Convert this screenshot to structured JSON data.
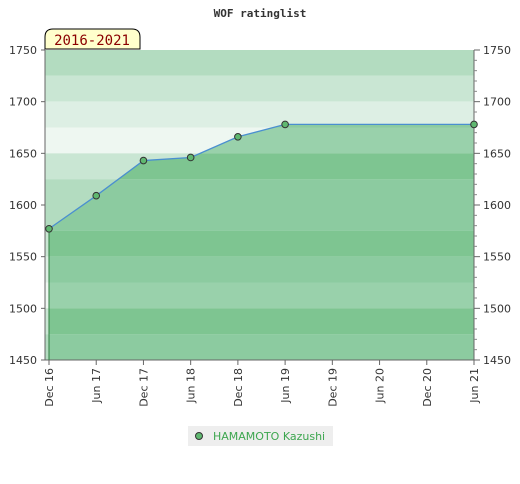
{
  "chart_data": {
    "type": "area",
    "title": "WOF ratinglist",
    "badge": "2016-2021",
    "x_categories": [
      "Dec 16",
      "Jun 17",
      "Dec 17",
      "Jun 18",
      "Dec 18",
      "Jun 19",
      "Dec 19",
      "Jun 20",
      "Dec 20",
      "Jun 21"
    ],
    "ylim": [
      1450,
      1750
    ],
    "y_ticks": [
      1450,
      1500,
      1550,
      1600,
      1650,
      1700,
      1750
    ],
    "y_tick_labels": [
      "1450",
      "1500",
      "1550",
      "1600",
      "1650",
      "1700",
      "1750"
    ],
    "series": [
      {
        "name": "HAMAMOTO Kazushi",
        "x": [
          "Dec 16",
          "Jun 17",
          "Dec 17",
          "Jun 18",
          "Dec 18",
          "Jun 19",
          "Jun 21"
        ],
        "values": [
          1577,
          1609,
          1643,
          1646,
          1666,
          1678,
          1678
        ]
      }
    ],
    "legend_position": "bottom-center",
    "grid": true,
    "colors": {
      "line": "#4a8fd0",
      "marker": "#3da64f",
      "legend_text": "#3da64f",
      "badge_fill": "#ffffcc"
    }
  }
}
